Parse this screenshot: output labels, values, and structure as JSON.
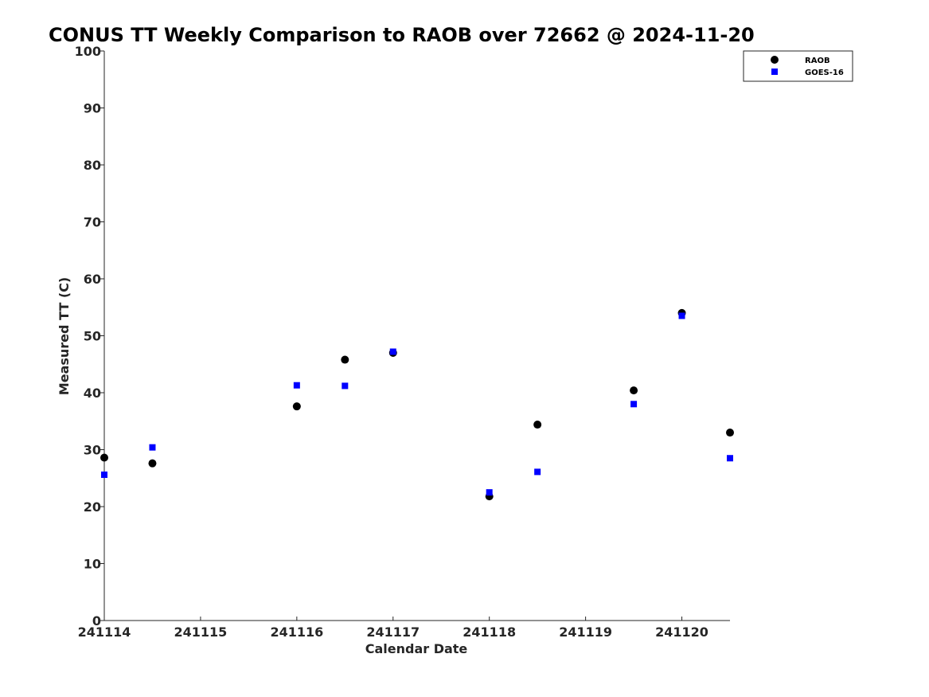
{
  "chart_data": {
    "type": "scatter",
    "title": "CONUS TT Weekly Comparison to RAOB over 72662 @ 2024-11-20",
    "xlabel": "Calendar Date",
    "ylabel": "Measured TT (C)",
    "xlim": [
      241114,
      241120.5
    ],
    "ylim": [
      0,
      100
    ],
    "x_ticks": [
      241114,
      241115,
      241116,
      241117,
      241118,
      241119,
      241120
    ],
    "x_tick_labels": [
      "241114",
      "241115",
      "241116",
      "241117",
      "241118",
      "241119",
      "241120"
    ],
    "y_ticks": [
      0,
      10,
      20,
      30,
      40,
      50,
      60,
      70,
      80,
      90,
      100
    ],
    "y_tick_labels": [
      "0",
      "10",
      "20",
      "30",
      "40",
      "50",
      "60",
      "70",
      "80",
      "90",
      "100"
    ],
    "grid": false,
    "legend_position": "top-right",
    "series": [
      {
        "name": "RAOB",
        "marker": "circle",
        "color": "#000000",
        "x": [
          241114,
          241114.5,
          241116,
          241116.5,
          241117,
          241118,
          241118.5,
          241119.5,
          241120,
          241120.5
        ],
        "y": [
          28.6,
          27.6,
          37.6,
          45.8,
          47.0,
          21.8,
          34.4,
          40.4,
          54.0,
          33.0
        ]
      },
      {
        "name": "GOES-16",
        "marker": "square",
        "color": "#0000ff",
        "x": [
          241114,
          241114.5,
          241116,
          241116.5,
          241117,
          241118,
          241118.5,
          241119.5,
          241120,
          241120.5
        ],
        "y": [
          25.6,
          30.4,
          41.3,
          41.2,
          47.2,
          22.5,
          26.1,
          38.0,
          53.5,
          28.5
        ]
      }
    ]
  }
}
